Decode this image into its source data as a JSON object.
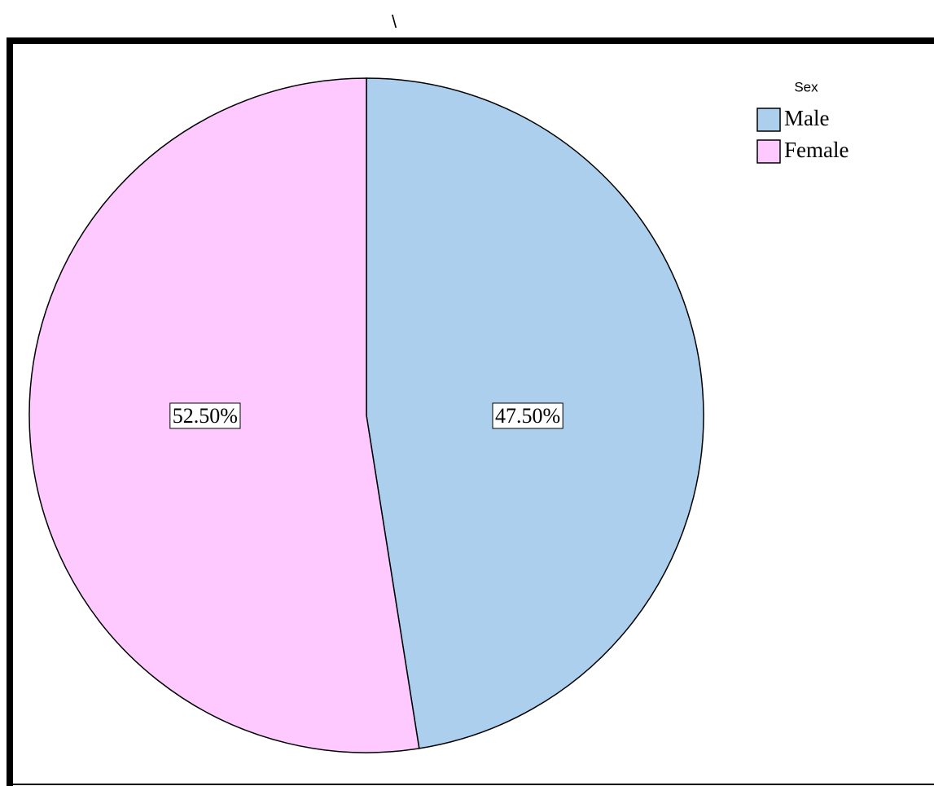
{
  "chart_data": {
    "type": "pie",
    "annotations": [
      "\\"
    ],
    "legend_title": "Sex",
    "legend": "top-right",
    "categories": [
      "Male",
      "Female"
    ],
    "values": [
      47.5,
      52.5
    ],
    "value_labels": [
      "47.50%",
      "52.50%"
    ],
    "colors": [
      "#abcfed",
      "#fec9fe"
    ]
  }
}
